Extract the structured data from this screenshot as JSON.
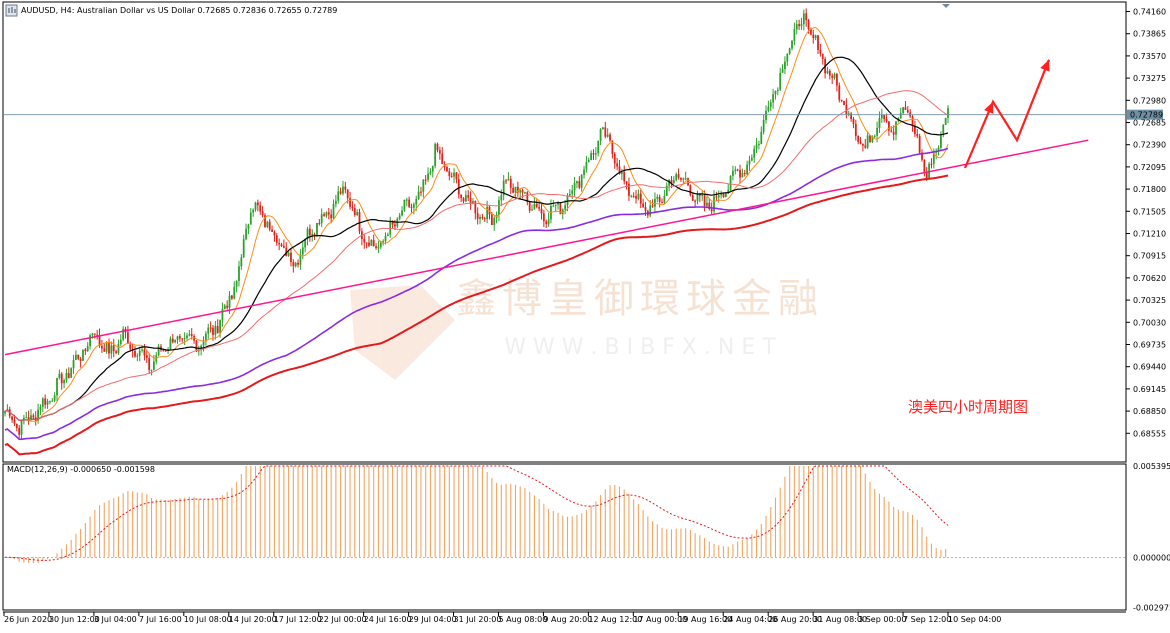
{
  "header": {
    "symbol_icon": "chart-window-icon",
    "text": "AUDUSD, H4:  Australian Dollar vs US Dollar  0.72685 0.72836 0.72655 0.72789"
  },
  "annotation": {
    "text": "澳美四小时周期图",
    "color": "#ff2020"
  },
  "watermark": {
    "line1": "鑫博皇御環球金融",
    "line2": "W W W . B I B F X . N E T"
  },
  "macd": {
    "label": "MACD(12,26,9) -0.000650 -0.001598",
    "range": [
      -0.003,
      0.0054
    ],
    "ticks": [
      "0.005395",
      "0.000000",
      "-0.002975"
    ]
  },
  "colors": {
    "bull": "#2ca02c",
    "bear": "#e0201a",
    "ma_fast": "#ff8c1a",
    "ma_mid": "#000000",
    "ma_slow": "#f26d6d",
    "ma_purple": "#8a2be2",
    "ma_red": "#e41a1c",
    "trendline": "#ff1493",
    "arrow": "#ff2020",
    "hist": "#f4a460"
  },
  "chart_data": {
    "type": "candlestick",
    "ylim": [
      0.682,
      0.7418
    ],
    "price_ticks": [
      "0.74160",
      "0.73865",
      "0.73570",
      "0.73275",
      "0.72980",
      "0.72685",
      "0.72390",
      "0.72095",
      "0.71800",
      "0.71505",
      "0.71210",
      "0.70915",
      "0.70620",
      "0.70325",
      "0.70030",
      "0.69735",
      "0.69440",
      "0.69145",
      "0.68850",
      "0.68555"
    ],
    "current_price": "0.72789",
    "x_labels": [
      "26 Jun 2020",
      "30 Jun 12:00",
      "3 Jul 04:00",
      "7 Jul 16:00",
      "10 Jul 08:00",
      "14 Jul 20:00",
      "17 Jul 12:00",
      "22 Jul 00:00",
      "24 Jul 16:00",
      "29 Jul 04:00",
      "31 Jul 20:00",
      "5 Aug 08:00",
      "9 Aug 20:00",
      "12 Aug 12:00",
      "17 Aug 00:00",
      "19 Aug 16:00",
      "24 Aug 04:00",
      "26 Aug 20:00",
      "31 Aug 08:00",
      "3 Sep 00:00",
      "7 Sep 12:00",
      "10 Sep 04:00"
    ],
    "close_path": [
      [
        0,
        0.6885
      ],
      [
        6,
        0.6865
      ],
      [
        12,
        0.688
      ],
      [
        18,
        0.69
      ],
      [
        25,
        0.693
      ],
      [
        32,
        0.696
      ],
      [
        38,
        0.699
      ],
      [
        44,
        0.696
      ],
      [
        50,
        0.6985
      ],
      [
        56,
        0.6965
      ],
      [
        62,
        0.6945
      ],
      [
        68,
        0.6975
      ],
      [
        75,
        0.698
      ],
      [
        82,
        0.6975
      ],
      [
        90,
        0.7
      ],
      [
        98,
        0.7055
      ],
      [
        104,
        0.716
      ],
      [
        110,
        0.714
      ],
      [
        116,
        0.711
      ],
      [
        122,
        0.708
      ],
      [
        130,
        0.713
      ],
      [
        138,
        0.7155
      ],
      [
        144,
        0.718
      ],
      [
        150,
        0.713
      ],
      [
        156,
        0.71
      ],
      [
        162,
        0.712
      ],
      [
        168,
        0.715
      ],
      [
        176,
        0.717
      ],
      [
        182,
        0.723
      ],
      [
        188,
        0.72
      ],
      [
        194,
        0.717
      ],
      [
        200,
        0.715
      ],
      [
        206,
        0.714
      ],
      [
        212,
        0.719
      ],
      [
        220,
        0.717
      ],
      [
        228,
        0.7145
      ],
      [
        236,
        0.716
      ],
      [
        244,
        0.72
      ],
      [
        252,
        0.725
      ],
      [
        256,
        0.7245
      ],
      [
        260,
        0.72
      ],
      [
        266,
        0.717
      ],
      [
        272,
        0.715
      ],
      [
        278,
        0.717
      ],
      [
        284,
        0.72
      ],
      [
        290,
        0.718
      ],
      [
        296,
        0.7155
      ],
      [
        302,
        0.717
      ],
      [
        308,
        0.7195
      ],
      [
        316,
        0.722
      ],
      [
        324,
        0.73
      ],
      [
        330,
        0.735
      ],
      [
        334,
        0.739
      ],
      [
        338,
        0.7405
      ],
      [
        342,
        0.738
      ],
      [
        348,
        0.734
      ],
      [
        354,
        0.73
      ],
      [
        360,
        0.726
      ],
      [
        364,
        0.723
      ],
      [
        370,
        0.728
      ],
      [
        376,
        0.726
      ],
      [
        382,
        0.729
      ],
      [
        386,
        0.724
      ],
      [
        390,
        0.72
      ],
      [
        394,
        0.723
      ],
      [
        398,
        0.7279
      ]
    ],
    "trendline": [
      [
        0,
        0.696
      ],
      [
        436,
        0.7245
      ]
    ],
    "forecast_arrow": [
      [
        410,
        0.7208
      ],
      [
        424,
        0.7296
      ],
      [
        436,
        0.7245
      ],
      [
        452,
        0.7352
      ]
    ],
    "n_bars": 400
  }
}
